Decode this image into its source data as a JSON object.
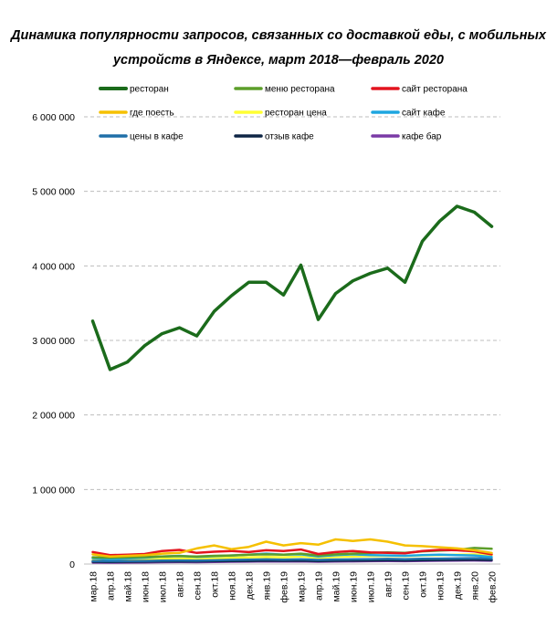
{
  "chart_data": {
    "type": "line",
    "title": "Динамика популярности запросов, связанных со доставкой еды, с мобильных",
    "subtitle": "устройств в Яндексе, март 2018—февраль 2020",
    "ylim": [
      0,
      6000000
    ],
    "y_ticks": [
      "0",
      "1 000 000",
      "2 000 000",
      "3 000 000",
      "4 000 000",
      "5 000 000",
      "6 000 000"
    ],
    "grid": true,
    "legend_placement": "top",
    "categories": [
      "мар.18",
      "апр.18",
      "май.18",
      "июн.18",
      "июл.18",
      "авг.18",
      "сен.18",
      "окт.18",
      "ноя.18",
      "дек.18",
      "янв.19",
      "фев.19",
      "мар.19",
      "апр.19",
      "май.19",
      "июн.19",
      "июл.19",
      "авг.19",
      "сен.19",
      "окт.19",
      "ноя.19",
      "дек.19",
      "янв.20",
      "фев.20"
    ],
    "series": [
      {
        "name": "ресторан",
        "color": "#1b6b1b",
        "width": 3.5,
        "values": [
          3260000,
          2610000,
          2710000,
          2930000,
          3090000,
          3170000,
          3060000,
          3390000,
          3600000,
          3780000,
          3780000,
          3610000,
          4010000,
          3280000,
          3630000,
          3800000,
          3900000,
          3970000,
          3780000,
          4330000,
          4600000,
          4800000,
          4720000,
          4530000
        ]
      },
      {
        "name": "меню ресторана",
        "color": "#5c9e2a",
        "width": 2.5,
        "values": [
          90000,
          85000,
          90000,
          95000,
          100000,
          105000,
          100000,
          110000,
          115000,
          125000,
          130000,
          125000,
          140000,
          115000,
          130000,
          140000,
          150000,
          155000,
          150000,
          170000,
          180000,
          190000,
          215000,
          205000
        ]
      },
      {
        "name": "сайт ресторана",
        "color": "#e3141e",
        "width": 2.5,
        "values": [
          160000,
          120000,
          125000,
          135000,
          175000,
          190000,
          150000,
          165000,
          175000,
          160000,
          185000,
          175000,
          195000,
          135000,
          160000,
          175000,
          155000,
          150000,
          145000,
          175000,
          190000,
          185000,
          170000,
          130000
        ]
      },
      {
        "name": "где поесть",
        "color": "#f5c000",
        "width": 2.5,
        "values": [
          130000,
          100000,
          110000,
          120000,
          140000,
          150000,
          210000,
          250000,
          200000,
          230000,
          300000,
          250000,
          280000,
          260000,
          330000,
          310000,
          330000,
          300000,
          250000,
          240000,
          225000,
          210000,
          185000,
          150000
        ]
      },
      {
        "name": "ресторан цена",
        "color": "#ffff33",
        "width": 2.5,
        "values": [
          60000,
          55000,
          60000,
          65000,
          70000,
          70000,
          75000,
          80000,
          85000,
          90000,
          95000,
          90000,
          100000,
          85000,
          95000,
          100000,
          105000,
          110000,
          105000,
          115000,
          120000,
          125000,
          130000,
          120000
        ]
      },
      {
        "name": "сайт кафе",
        "color": "#1ea6e0",
        "width": 2.5,
        "values": [
          80000,
          65000,
          75000,
          85000,
          100000,
          110000,
          95000,
          105000,
          115000,
          125000,
          140000,
          125000,
          130000,
          100000,
          120000,
          130000,
          120000,
          115000,
          110000,
          120000,
          125000,
          120000,
          115000,
          95000
        ]
      },
      {
        "name": "цены в кафе",
        "color": "#1f6fa8",
        "width": 2.5,
        "values": [
          40000,
          38000,
          40000,
          42000,
          45000,
          48000,
          45000,
          50000,
          55000,
          58000,
          62000,
          58000,
          62000,
          55000,
          60000,
          63000,
          65000,
          68000,
          65000,
          70000,
          72000,
          75000,
          78000,
          72000
        ]
      },
      {
        "name": "отзыв кафе",
        "color": "#0e2545",
        "width": 2.5,
        "values": [
          30000,
          28000,
          30000,
          32000,
          35000,
          36000,
          35000,
          38000,
          40000,
          42000,
          45000,
          43000,
          46000,
          40000,
          44000,
          46000,
          48000,
          50000,
          48000,
          52000,
          54000,
          56000,
          58000,
          54000
        ]
      },
      {
        "name": "кафе бар",
        "color": "#7a3aa6",
        "width": 2.5,
        "values": [
          20000,
          18000,
          20000,
          22000,
          25000,
          26000,
          25000,
          28000,
          30000,
          32000,
          35000,
          33000,
          36000,
          30000,
          34000,
          36000,
          38000,
          40000,
          38000,
          42000,
          44000,
          46000,
          48000,
          44000
        ]
      }
    ]
  }
}
